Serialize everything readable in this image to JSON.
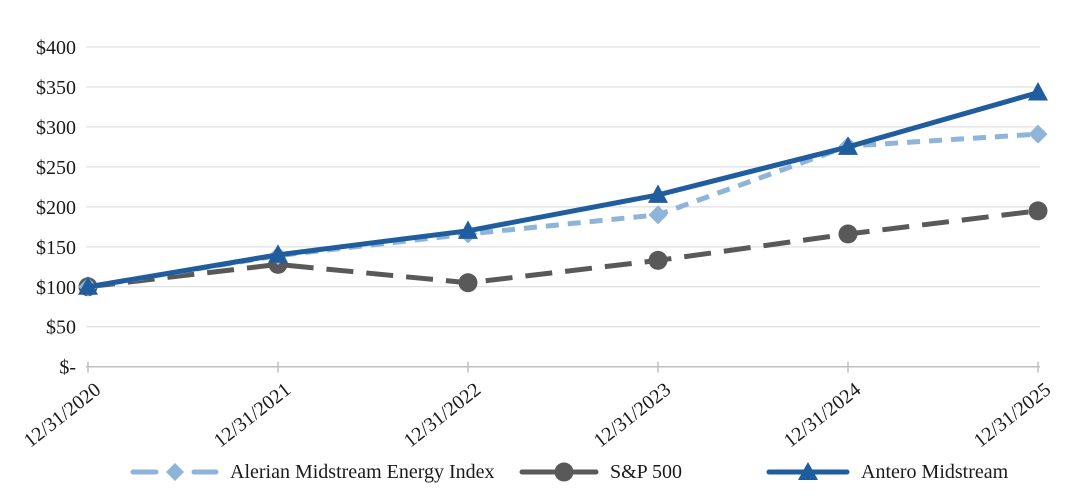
{
  "chart_data": {
    "type": "line",
    "title": "",
    "x_labels": [
      "12/31/2020",
      "12/31/2021",
      "12/31/2022",
      "12/31/2023",
      "12/31/2024",
      "12/31/2025"
    ],
    "y_ticks": [
      "$400",
      "$350",
      "$300",
      "$250",
      "$200",
      "$150",
      "$100",
      "$50",
      "$-"
    ],
    "y_tick_values": [
      400,
      350,
      300,
      250,
      200,
      150,
      100,
      50,
      0
    ],
    "ylim": [
      0,
      400
    ],
    "grid": "horizontal",
    "grid_color": "#d9d9d9",
    "axis_color": "#bfbfbf",
    "text_color": "#1a1a1a",
    "legend_position": "bottom",
    "z_order": [
      1,
      0,
      2
    ],
    "series": [
      {
        "id": "alerian",
        "name": "Alerian Midstream Energy Index",
        "color": "#8eb4da",
        "dash": "dashed",
        "marker": "diamond",
        "values": [
          100,
          139,
          166,
          190,
          276,
          291
        ]
      },
      {
        "id": "sp500",
        "name": "S&P 500",
        "color": "#595959",
        "dash": "long-dash",
        "marker": "circle",
        "values": [
          100,
          128,
          105,
          133,
          166,
          195
        ]
      },
      {
        "id": "antero",
        "name": "Antero Midstream",
        "color": "#1f5d9e",
        "dash": "solid",
        "marker": "triangle",
        "values": [
          100,
          140,
          170,
          215,
          275,
          343
        ]
      }
    ]
  }
}
